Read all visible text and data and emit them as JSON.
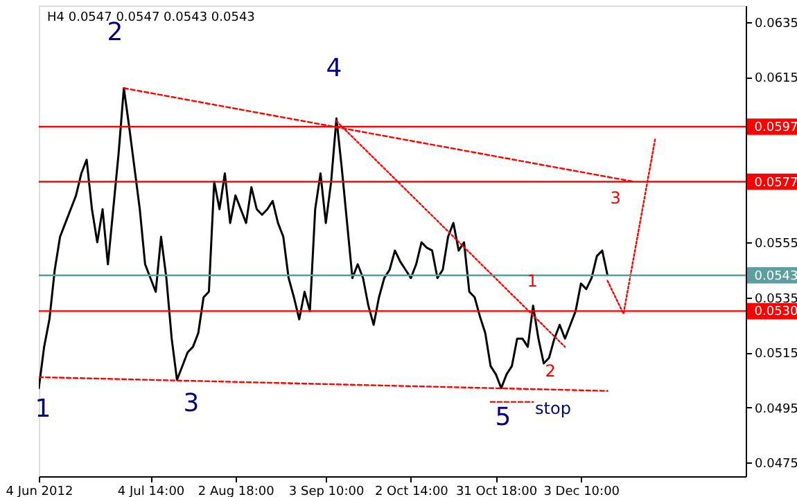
{
  "chart_data": {
    "type": "line",
    "title": "H4 0.0547 0.0547 0.0543 0.0543",
    "categories": [
      "4 Jun 2012",
      null,
      null,
      null,
      null,
      null,
      null,
      null,
      null,
      null,
      null,
      null,
      null,
      null,
      null,
      null,
      null,
      null,
      null,
      null,
      null,
      "4 Jul 14:00",
      null,
      null,
      null,
      null,
      null,
      null,
      null,
      null,
      null,
      null,
      null,
      null,
      null,
      null,
      null,
      "2 Aug 18:00",
      null,
      null,
      null,
      null,
      null,
      null,
      null,
      null,
      null,
      null,
      null,
      null,
      null,
      null,
      null,
      null,
      "3 Sep 10:00",
      null,
      null,
      null,
      null,
      null,
      null,
      null,
      null,
      null,
      null,
      null,
      null,
      null,
      null,
      null,
      "2 Oct 14:00",
      null,
      null,
      null,
      null,
      null,
      null,
      null,
      null,
      null,
      null,
      null,
      null,
      null,
      null,
      null,
      "31 Oct 18:00",
      null,
      null,
      null,
      null,
      null,
      null,
      null,
      null,
      null,
      null,
      null,
      null,
      null,
      null,
      null,
      "3 Dec 10:00",
      null,
      null,
      null,
      null,
      null,
      null,
      null,
      null,
      null,
      null,
      null,
      null,
      null,
      null,
      null,
      null,
      null,
      null,
      null,
      null,
      null,
      null,
      null,
      null,
      null,
      null,
      null,
      null,
      null,
      null,
      null
    ],
    "ylim": [
      0.047,
      0.0641
    ],
    "yticks": [
      0.0475,
      0.0495,
      0.0515,
      0.0535,
      0.0555,
      0.0615,
      0.0635
    ],
    "grid": false,
    "series": [
      {
        "color": "#000000",
        "line_style": "solid",
        "values": [
          0.0502,
          0.0517,
          0.0527,
          0.0545,
          0.0557,
          0.0562,
          0.0567,
          0.0572,
          0.058,
          0.0585,
          0.0567,
          0.0555,
          0.0567,
          0.0547,
          0.0567,
          0.0587,
          0.0611,
          0.0597,
          0.0582,
          0.0567,
          0.0547,
          0.0542,
          0.0537,
          0.0557,
          0.0542,
          0.052,
          0.0505,
          0.051,
          0.0515,
          0.0517,
          0.0522,
          0.0535,
          0.0537,
          0.0577,
          0.0567,
          0.058,
          0.0562,
          0.0572,
          0.0567,
          0.0562,
          0.0575,
          0.0567,
          0.0565,
          0.0567,
          0.057,
          0.0562,
          0.0557,
          0.0542,
          0.0535,
          0.0527,
          0.0537,
          0.053,
          0.0567,
          0.058,
          0.0562,
          0.0577,
          0.06,
          0.0582,
          0.0562,
          0.0542,
          0.0547,
          0.0542,
          0.0532,
          0.0525,
          0.0535,
          0.0542,
          0.0545,
          0.0552,
          0.0548,
          0.0545,
          0.0542,
          0.0547,
          0.0555,
          0.0553,
          0.0552,
          0.0542,
          0.0545,
          0.0557,
          0.0562,
          0.0552,
          0.0555,
          0.0537,
          0.0535,
          0.0528,
          0.0522,
          0.051,
          0.0507,
          0.0502,
          0.0507,
          0.051,
          0.052,
          0.052,
          0.0517,
          0.0532,
          0.052,
          0.0511,
          0.0513,
          0.052,
          0.0525,
          0.052,
          0.0525,
          0.053,
          0.054,
          0.0538,
          0.0542,
          0.055,
          0.0552,
          0.0543,
          null,
          null,
          null,
          null,
          null,
          null,
          null,
          null,
          null,
          null,
          null,
          null,
          null,
          null,
          null,
          null,
          null,
          null,
          null,
          null,
          null,
          null,
          null,
          null,
          null,
          null
        ]
      },
      {
        "color": "#ff0000",
        "line_style": "dashed",
        "values": [
          null,
          null,
          null,
          null,
          null,
          null,
          null,
          null,
          null,
          null,
          null,
          null,
          null,
          null,
          null,
          null,
          0.0611,
          null,
          null,
          null,
          null,
          null,
          null,
          null,
          null,
          null,
          null,
          null,
          null,
          null,
          null,
          null,
          null,
          null,
          null,
          null,
          null,
          null,
          null,
          null,
          null,
          null,
          null,
          null,
          null,
          null,
          null,
          null,
          null,
          null,
          null,
          null,
          null,
          null,
          null,
          null,
          null,
          null,
          null,
          null,
          null,
          null,
          null,
          null,
          null,
          null,
          null,
          null,
          null,
          null,
          null,
          null,
          null,
          null,
          null,
          null,
          null,
          null,
          null,
          null,
          null,
          null,
          null,
          null,
          null,
          null,
          null,
          null,
          null,
          null,
          null,
          null,
          null,
          null,
          null,
          null,
          null,
          null,
          null,
          null,
          null,
          null,
          null,
          null,
          null,
          null,
          null,
          null,
          null,
          null,
          null,
          null,
          0.0577,
          null,
          null,
          null,
          null,
          null,
          null,
          null,
          null,
          null,
          null,
          null,
          null,
          null,
          null,
          null,
          null,
          null,
          null,
          null,
          null,
          null
        ]
      },
      {
        "color": "#ff0000",
        "line_style": "dotted",
        "values": [
          null,
          null,
          null,
          null,
          null,
          null,
          null,
          null,
          null,
          null,
          null,
          null,
          null,
          null,
          null,
          null,
          null,
          null,
          null,
          null,
          null,
          null,
          null,
          null,
          null,
          null,
          null,
          null,
          null,
          null,
          null,
          null,
          null,
          null,
          null,
          null,
          null,
          null,
          null,
          null,
          null,
          null,
          null,
          null,
          null,
          null,
          null,
          null,
          null,
          null,
          null,
          null,
          null,
          null,
          null,
          null,
          0.0599,
          null,
          null,
          null,
          null,
          null,
          null,
          null,
          null,
          null,
          null,
          null,
          null,
          null,
          null,
          null,
          null,
          null,
          null,
          null,
          null,
          null,
          null,
          null,
          null,
          null,
          null,
          null,
          null,
          null,
          null,
          null,
          null,
          null,
          null,
          null,
          null,
          null,
          null,
          null,
          null,
          null,
          null,
          0.0517,
          null,
          null,
          null,
          null,
          null,
          null,
          null,
          null,
          null,
          null,
          null,
          null,
          null,
          null,
          null,
          null,
          null,
          null,
          null,
          null,
          null,
          null,
          null,
          null,
          null,
          null,
          null,
          null,
          null,
          null,
          null,
          null,
          null,
          null
        ]
      },
      {
        "color": "#ff0000",
        "line_style": "dashed",
        "values": [
          0.0506,
          null,
          null,
          null,
          null,
          null,
          null,
          null,
          null,
          null,
          null,
          null,
          null,
          null,
          null,
          null,
          null,
          null,
          null,
          null,
          null,
          null,
          null,
          null,
          null,
          null,
          null,
          null,
          null,
          null,
          null,
          null,
          null,
          null,
          null,
          null,
          null,
          null,
          null,
          null,
          null,
          null,
          null,
          null,
          null,
          null,
          null,
          null,
          null,
          null,
          null,
          null,
          null,
          null,
          null,
          null,
          null,
          null,
          null,
          null,
          null,
          null,
          null,
          null,
          null,
          null,
          null,
          null,
          null,
          null,
          null,
          null,
          null,
          null,
          null,
          null,
          null,
          null,
          null,
          null,
          null,
          null,
          null,
          null,
          null,
          null,
          null,
          null,
          null,
          null,
          null,
          null,
          null,
          null,
          null,
          null,
          null,
          null,
          null,
          null,
          null,
          null,
          null,
          null,
          null,
          null,
          null,
          0.0501,
          null,
          null,
          null,
          null,
          null,
          null,
          null,
          null,
          null,
          null,
          null,
          null,
          null,
          null,
          null,
          null,
          null,
          null,
          null,
          null,
          null,
          null,
          null,
          null,
          null,
          null
        ]
      },
      {
        "color": "#ff0000",
        "line_style": "dashed",
        "values": [
          null,
          null,
          null,
          null,
          null,
          null,
          null,
          null,
          null,
          null,
          null,
          null,
          null,
          null,
          null,
          null,
          null,
          null,
          null,
          null,
          null,
          null,
          null,
          null,
          null,
          null,
          null,
          null,
          null,
          null,
          null,
          null,
          null,
          null,
          null,
          null,
          null,
          null,
          null,
          null,
          null,
          null,
          null,
          null,
          null,
          null,
          null,
          null,
          null,
          null,
          null,
          null,
          null,
          null,
          null,
          null,
          null,
          null,
          null,
          null,
          null,
          null,
          null,
          null,
          null,
          null,
          null,
          null,
          null,
          null,
          null,
          null,
          null,
          null,
          null,
          null,
          null,
          null,
          null,
          null,
          null,
          null,
          null,
          null,
          null,
          0.0497,
          null,
          null,
          null,
          null,
          null,
          null,
          null,
          0.0497,
          null,
          null,
          null,
          null,
          null,
          null,
          null,
          null,
          null,
          null,
          null,
          null,
          null,
          null,
          null,
          null,
          null,
          null,
          null,
          null,
          null,
          null,
          null,
          null,
          null,
          null,
          null,
          null,
          null,
          null,
          null,
          null,
          null,
          null,
          null,
          null,
          null,
          null,
          null,
          null
        ]
      },
      {
        "color": "#ff0000",
        "line_style": "dotted",
        "values": [
          null,
          null,
          null,
          null,
          null,
          null,
          null,
          null,
          null,
          null,
          null,
          null,
          null,
          null,
          null,
          null,
          null,
          null,
          null,
          null,
          null,
          null,
          null,
          null,
          null,
          null,
          null,
          null,
          null,
          null,
          null,
          null,
          null,
          null,
          null,
          null,
          null,
          null,
          null,
          null,
          null,
          null,
          null,
          null,
          null,
          null,
          null,
          null,
          null,
          null,
          null,
          null,
          null,
          null,
          null,
          null,
          null,
          null,
          null,
          null,
          null,
          null,
          null,
          null,
          null,
          null,
          null,
          null,
          null,
          null,
          null,
          null,
          null,
          null,
          null,
          null,
          null,
          null,
          null,
          null,
          null,
          null,
          null,
          null,
          null,
          null,
          null,
          null,
          null,
          null,
          null,
          null,
          null,
          null,
          null,
          null,
          null,
          null,
          null,
          null,
          null,
          null,
          null,
          null,
          null,
          null,
          null,
          0.0541,
          null,
          null,
          0.0529,
          null,
          null,
          null,
          null,
          null,
          0.0593,
          null,
          null,
          null,
          null,
          null,
          null,
          null,
          null,
          null,
          null,
          null,
          null,
          null,
          null,
          null,
          null,
          null
        ]
      }
    ],
    "ref_lines": [
      {
        "axis": "y",
        "value": 0.0597,
        "label": "0.0597",
        "color": "#ff0000"
      },
      {
        "axis": "y",
        "value": 0.0577,
        "label": "0.0577",
        "color": "#ff0000"
      },
      {
        "axis": "y",
        "value": 0.0543,
        "label": "0.0543",
        "color": "#5f9ea0"
      },
      {
        "axis": "y",
        "value": 0.053,
        "label": "0.0530",
        "color": "#ff0000"
      }
    ],
    "annotations": [
      "2",
      "4",
      "1",
      "3",
      "5",
      "stop",
      "1",
      "2",
      "3"
    ]
  }
}
